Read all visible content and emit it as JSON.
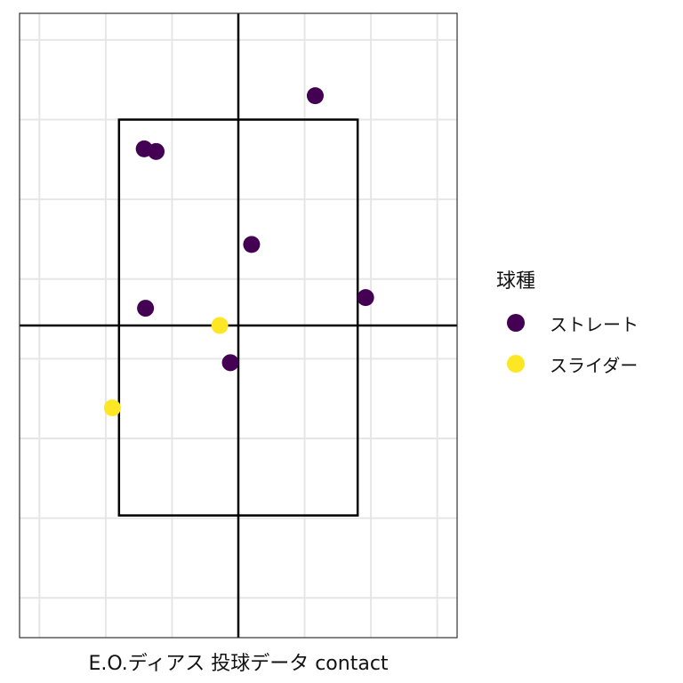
{
  "chart_data": {
    "type": "scatter",
    "xlabel": "E.O.ディアス 投球データ contact",
    "ylabel": "",
    "xlim": [
      -1.65,
      1.65
    ],
    "ylim": [
      0.0,
      4.7
    ],
    "grid": true,
    "legend_position": "right",
    "legend_title": "球種",
    "strike_zone": {
      "x": [
        -0.9,
        0.9
      ],
      "y": [
        0.92,
        3.9
      ]
    },
    "axis_lines": {
      "x": 0.0,
      "y": 2.35
    },
    "series": [
      {
        "name": "ストレート",
        "color": "#440154",
        "points": [
          {
            "x": 0.58,
            "y": 4.08
          },
          {
            "x": -0.71,
            "y": 3.68
          },
          {
            "x": -0.62,
            "y": 3.66
          },
          {
            "x": 0.1,
            "y": 2.96
          },
          {
            "x": 0.96,
            "y": 2.56
          },
          {
            "x": -0.7,
            "y": 2.48
          },
          {
            "x": -0.06,
            "y": 2.07
          }
        ]
      },
      {
        "name": "スライダー",
        "color": "#FDE725",
        "points": [
          {
            "x": -0.14,
            "y": 2.35
          },
          {
            "x": -0.95,
            "y": 1.73
          }
        ]
      }
    ]
  }
}
